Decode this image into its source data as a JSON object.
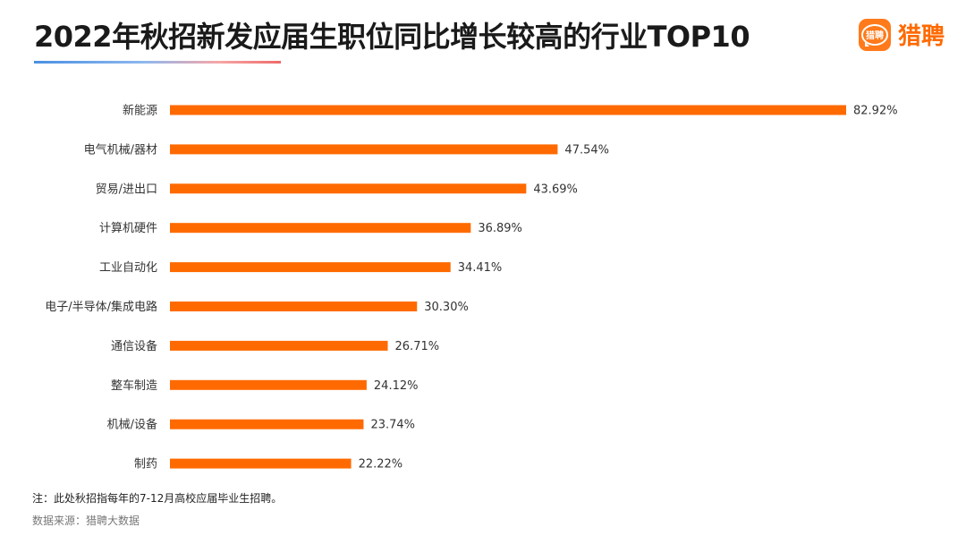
{
  "title": "2022年秋招新发应届生职位同比增长较高的行业TOP10",
  "brand": {
    "icon_text": "猎聘",
    "name": "猎聘",
    "icon": "liepin-logo-icon",
    "color": "#ff6a00"
  },
  "note": "注：此处秋招指每年的7-12月高校应届毕业生招聘。",
  "source": "数据来源：猎聘大数据",
  "chart_data": {
    "type": "bar",
    "orientation": "horizontal",
    "categories": [
      "新能源",
      "电气机械/器材",
      "贸易/进出口",
      "计算机硬件",
      "工业自动化",
      "电子/半导体/集成电路",
      "通信设备",
      "整车制造",
      "机械/设备",
      "制药"
    ],
    "values": [
      82.92,
      47.54,
      43.69,
      36.89,
      34.41,
      30.3,
      26.71,
      24.12,
      23.74,
      22.22
    ],
    "value_labels": [
      "82.92%",
      "47.54%",
      "43.69%",
      "36.89%",
      "34.41%",
      "30.30%",
      "26.71%",
      "24.12%",
      "23.74%",
      "22.22%"
    ],
    "unit": "%",
    "xlim": [
      0,
      82.92
    ],
    "grid": false,
    "bar_color": "#ff6a00"
  }
}
